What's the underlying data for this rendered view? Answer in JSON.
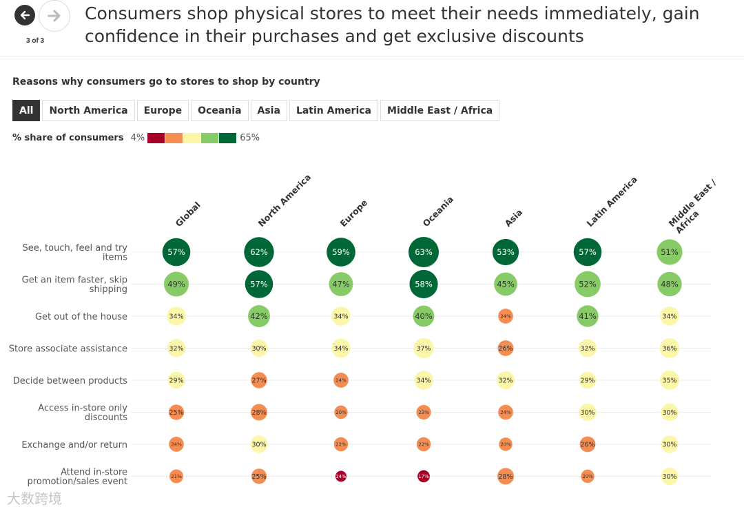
{
  "header": {
    "title": "Consumers shop physical stores to meet their needs immediately, gain confidence in their purchases and get exclusive discounts",
    "pager": "3 of 3",
    "prev_icon": "arrow-left-icon",
    "next_icon": "arrow-right-icon"
  },
  "filters": {
    "tabs": [
      "All",
      "North America",
      "Europe",
      "Oceania",
      "Asia",
      "Latin America",
      "Middle East / Africa"
    ],
    "active": "All"
  },
  "legend": {
    "label": "% share of consumers",
    "min_label": "4%",
    "max_label": "65%",
    "colors": [
      "#a50026",
      "#f58d53",
      "#fbf6a8",
      "#87cb66",
      "#006837"
    ]
  },
  "watermark": "大数跨境",
  "chart_data": {
    "type": "bubble-matrix",
    "title": "Reasons why consumers go to stores to shop by country",
    "unit": "%",
    "columns": [
      "Global",
      "North America",
      "Europe",
      "Oceania",
      "Asia",
      "Latin America",
      "Middle East / Africa"
    ],
    "rows": [
      {
        "label": [
          "See, touch, feel and try",
          "items"
        ],
        "values": [
          57,
          62,
          59,
          63,
          53,
          57,
          51
        ]
      },
      {
        "label": [
          "Get an item faster, skip",
          "shipping"
        ],
        "values": [
          49,
          57,
          47,
          58,
          45,
          52,
          48
        ]
      },
      {
        "label": [
          "Get out of the house"
        ],
        "values": [
          34,
          42,
          34,
          40,
          24,
          41,
          34
        ]
      },
      {
        "label": [
          "Store associate assistance"
        ],
        "values": [
          32,
          30,
          34,
          37,
          26,
          32,
          36
        ]
      },
      {
        "label": [
          "Decide between products"
        ],
        "values": [
          29,
          27,
          24,
          34,
          32,
          29,
          35
        ]
      },
      {
        "label": [
          "Access in-store only",
          "discounts"
        ],
        "values": [
          25,
          28,
          20,
          23,
          24,
          30,
          30
        ]
      },
      {
        "label": [
          "Exchange and/or return"
        ],
        "values": [
          24,
          30,
          22,
          22,
          20,
          26,
          30
        ]
      },
      {
        "label": [
          "Attend in-store",
          "promotion/sales event"
        ],
        "values": [
          21,
          25,
          14,
          17,
          28,
          20,
          30
        ]
      }
    ],
    "value_range": [
      4,
      65
    ]
  }
}
